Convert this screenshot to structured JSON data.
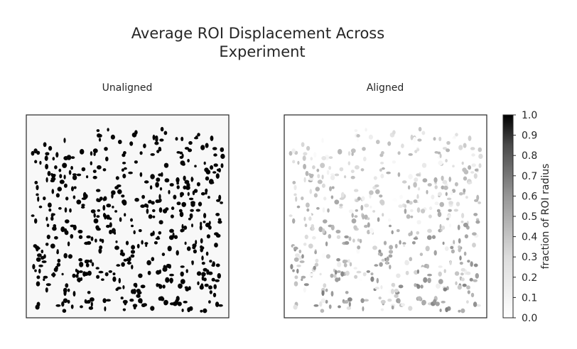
{
  "chart_data": {
    "type": "heatmap",
    "title": "Average ROI Displacement Across\nExperiment",
    "panels": [
      {
        "name": "unaligned",
        "title": "Unaligned",
        "background": "#f8f8f8",
        "roi_value_range": [
          0.95,
          1.0
        ]
      },
      {
        "name": "aligned",
        "title": "Aligned",
        "background": "#ffffff",
        "roi_value_range": [
          0.0,
          0.35
        ]
      }
    ],
    "colorbar": {
      "label": "fraction of ROI radius",
      "colormap": "greys",
      "min": 0.0,
      "max": 1.0,
      "ticks": [
        "0.0",
        "0.1",
        "0.2",
        "0.3",
        "0.4",
        "0.5",
        "0.6",
        "0.7",
        "0.8",
        "0.9",
        "1.0"
      ]
    },
    "axes": {
      "grid": false,
      "xticks": [],
      "yticks": []
    }
  },
  "colors": {
    "text": "#262626",
    "axis_frame": "#262626"
  }
}
